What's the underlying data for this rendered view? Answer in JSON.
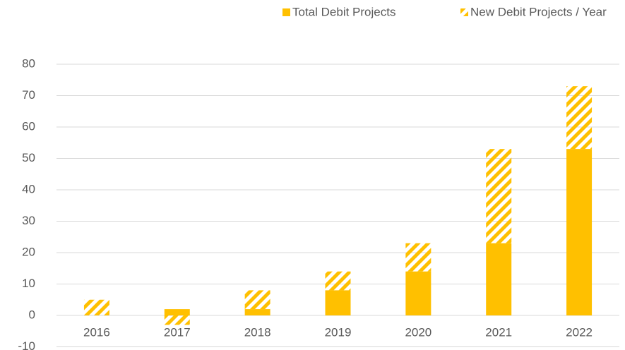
{
  "chart_data": {
    "type": "stacked_bar",
    "categories": [
      "2016",
      "2017",
      "2018",
      "2019",
      "2020",
      "2021",
      "2022"
    ],
    "series": [
      {
        "name": "Total Debit Projects",
        "color": "#ffc000",
        "hatch": false,
        "values": [
          0,
          2,
          2,
          8,
          14,
          23,
          53
        ]
      },
      {
        "name": "New Debit Projects / Year",
        "color": "#ffc000",
        "hatch": true,
        "values": [
          5,
          -3,
          6,
          6,
          9,
          30,
          20
        ]
      }
    ],
    "ylim": [
      -10,
      80
    ],
    "yticks": [
      -10,
      0,
      10,
      20,
      30,
      40,
      50,
      60,
      70,
      80
    ],
    "grid": true,
    "legend": "top"
  }
}
